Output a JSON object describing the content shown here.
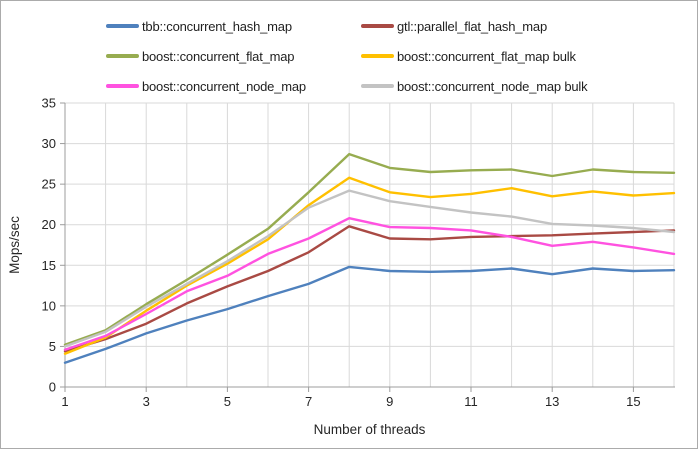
{
  "chart_data": {
    "type": "line",
    "title": "",
    "xlabel": "Number of threads",
    "ylabel": "Mops/sec",
    "x": [
      1,
      2,
      3,
      4,
      5,
      6,
      7,
      8,
      9,
      10,
      11,
      12,
      13,
      14,
      15,
      16
    ],
    "xlim": [
      1,
      16
    ],
    "ylim": [
      0,
      35
    ],
    "x_tick_labels": [
      "1",
      "3",
      "5",
      "7",
      "9",
      "11",
      "13",
      "15"
    ],
    "x_tick_values": [
      1,
      3,
      5,
      7,
      9,
      11,
      13,
      15
    ],
    "y_tick_labels": [
      "0",
      "5",
      "10",
      "15",
      "20",
      "25",
      "30",
      "35"
    ],
    "y_tick_values": [
      0,
      5,
      10,
      15,
      20,
      25,
      30,
      35
    ],
    "grid": true,
    "legend_position": "top",
    "series": [
      {
        "name": "tbb::concurrent_hash_map",
        "color": "#4F81BD",
        "values": [
          3.0,
          4.7,
          6.6,
          8.2,
          9.6,
          11.2,
          12.7,
          14.8,
          14.3,
          14.2,
          14.3,
          14.6,
          13.9,
          14.6,
          14.3,
          14.4
        ]
      },
      {
        "name": "gtl::parallel_flat_hash_map",
        "color": "#A94A44",
        "values": [
          4.4,
          5.9,
          7.8,
          10.3,
          12.4,
          14.3,
          16.6,
          19.8,
          18.3,
          18.2,
          18.5,
          18.6,
          18.7,
          18.9,
          19.1,
          19.3
        ]
      },
      {
        "name": "boost::concurrent_flat_map",
        "color": "#97AC50",
        "values": [
          5.2,
          7.0,
          10.2,
          13.2,
          16.3,
          19.5,
          24.0,
          28.7,
          27.0,
          26.5,
          26.7,
          26.8,
          26.0,
          26.8,
          26.5,
          26.4
        ]
      },
      {
        "name": "boost::concurrent_flat_map bulk",
        "color": "#FFC000",
        "values": [
          4.1,
          6.1,
          9.4,
          12.5,
          15.2,
          18.2,
          22.4,
          25.8,
          24.0,
          23.4,
          23.8,
          24.5,
          23.5,
          24.1,
          23.6,
          23.9
        ]
      },
      {
        "name": "boost::concurrent_node_map",
        "color": "#FF52E0",
        "values": [
          4.6,
          6.3,
          9.0,
          11.8,
          13.7,
          16.4,
          18.3,
          20.8,
          19.7,
          19.6,
          19.3,
          18.5,
          17.4,
          17.9,
          17.2,
          16.4
        ]
      },
      {
        "name": "boost::concurrent_node_map bulk",
        "color": "#C3C3C3",
        "values": [
          5.0,
          6.8,
          9.9,
          12.7,
          15.5,
          18.6,
          22.1,
          24.2,
          22.9,
          22.2,
          21.5,
          21.0,
          20.1,
          19.9,
          19.6,
          19.1
        ]
      }
    ]
  },
  "colors": {
    "gridline": "#D9D9D9",
    "axis": "#9C9C9C",
    "tick_text": "#262626",
    "legend_text": "#1f1f1f",
    "frame_border": "#ABABAB",
    "background": "#FFFFFF"
  }
}
